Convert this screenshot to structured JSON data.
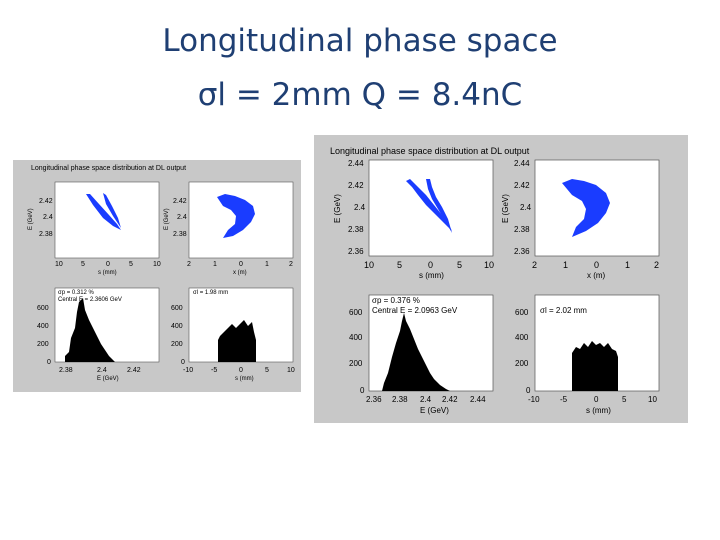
{
  "slide": {
    "title_line1": "Longitudinal phase space",
    "title_line2": "σl = 2mm  Q = 8.4nC"
  },
  "figure_left": {
    "suptitle": "Longitudinal phase space distribution at DL output",
    "panels": {
      "top_left": {
        "ylabel": "E (GeV)",
        "xlabel": "s (mm)",
        "yticks": [
          "2.42",
          "2.4",
          "2.38"
        ],
        "xticks": [
          "10",
          "5",
          "0",
          "5",
          "10"
        ]
      },
      "top_right": {
        "ylabel": "E (GeV)",
        "xlabel": "x (m)",
        "yticks": [
          "2.42",
          "2.4",
          "2.38"
        ],
        "xticks": [
          "2",
          "1",
          "0",
          "1",
          "2"
        ]
      },
      "bottom_left": {
        "xlabel": "E (GeV)",
        "yticks": [
          "600",
          "400",
          "200",
          "0"
        ],
        "xticks": [
          "2.38",
          "2.4",
          "2.42"
        ],
        "annotation1": "σp = 0.312 %",
        "annotation2": "Central E = 2.3606 GeV"
      },
      "bottom_right": {
        "xlabel": "s (mm)",
        "yticks": [
          "600",
          "400",
          "200",
          "0"
        ],
        "xticks": [
          "-10",
          "-5",
          "0",
          "5",
          "10"
        ],
        "annotation1": "σl = 1.98 mm"
      }
    }
  },
  "figure_right": {
    "suptitle": "Longitudinal phase space distribution at DL output",
    "panels": {
      "top_left": {
        "ylabel": "E (GeV)",
        "xlabel": "s (mm)",
        "yticks": [
          "2.44",
          "2.42",
          "2.4",
          "2.38",
          "2.36"
        ],
        "xticks": [
          "10",
          "5",
          "0",
          "5",
          "10"
        ]
      },
      "top_right": {
        "ylabel": "E (GeV)",
        "xlabel": "x (m)",
        "yticks": [
          "2.44",
          "2.42",
          "2.4",
          "2.38",
          "2.36"
        ],
        "xticks": [
          "2",
          "1",
          "0",
          "1",
          "2"
        ]
      },
      "bottom_left": {
        "xlabel": "E (GeV)",
        "yticks": [
          "600",
          "400",
          "200",
          "0"
        ],
        "xticks": [
          "2.36",
          "2.38",
          "2.4",
          "2.42",
          "2.44"
        ],
        "annotation1": "σp = 0.376 %",
        "annotation2": "Central E = 2.0963 GeV"
      },
      "bottom_right": {
        "xlabel": "s (mm)",
        "yticks": [
          "600",
          "400",
          "200",
          "0"
        ],
        "xticks": [
          "-10",
          "-5",
          "0",
          "5",
          "10"
        ],
        "annotation1": "σl = 2.02 mm"
      }
    }
  },
  "colors": {
    "title": "#1f3f73",
    "figure_bg": "#c8c8c8",
    "axes_bg": "#ffffff",
    "scatter": "#1a3cff",
    "histogram": "#000000"
  }
}
